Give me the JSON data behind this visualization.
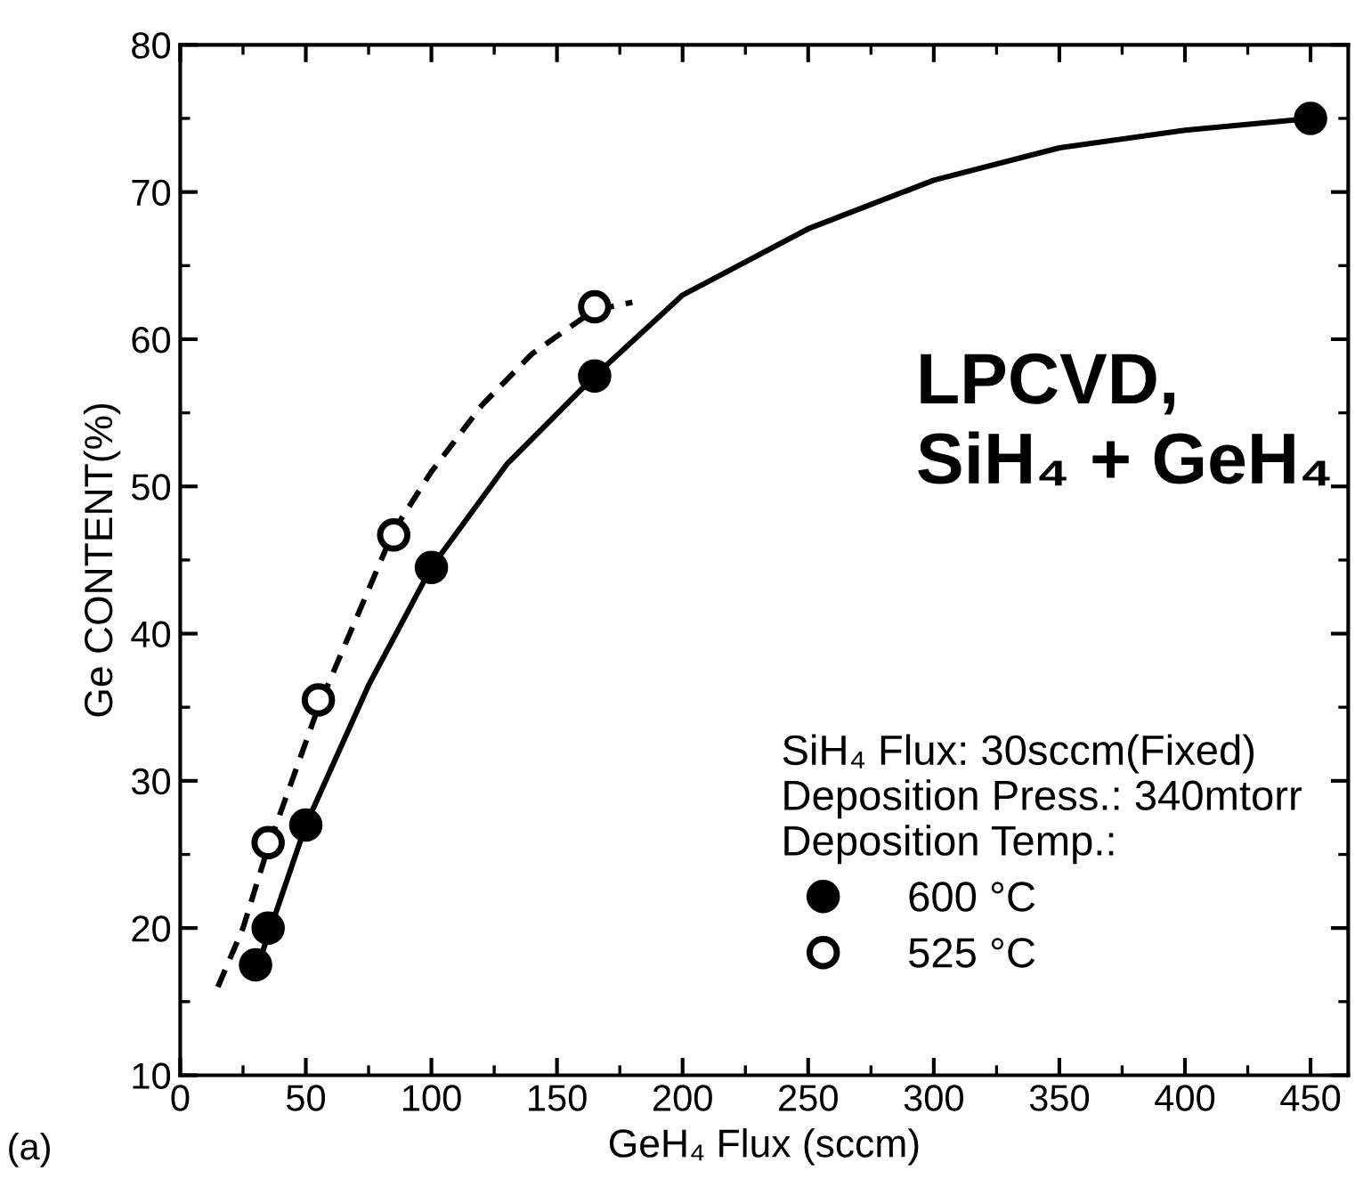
{
  "chart_data": {
    "type": "scatter",
    "xlabel": "GeH₄ Flux (sccm)",
    "ylabel": "Ge CONTENT(%)",
    "legend_title": "SiH₄ Flux: 30sccm(Fixed)\nDeposition Press.: 340mtorr\nDeposition Temp.:",
    "legend": "bottom right",
    "marker": "circle",
    "xlim": [
      0,
      465
    ],
    "ylim": [
      10,
      80
    ],
    "xticks": [
      0,
      50,
      100,
      150,
      200,
      250,
      300,
      350,
      400,
      450
    ],
    "yticks": [
      10,
      20,
      30,
      40,
      50,
      60,
      70,
      80
    ],
    "grid": false,
    "annotations": [
      "LPCVD,\nSiH₄ + GeH₄",
      "(a)"
    ],
    "series": [
      {
        "name": "600 °C",
        "color": "#000000",
        "x": [
          30,
          35,
          50,
          100,
          165,
          450
        ],
        "values": [
          17.5,
          20,
          27,
          44.5,
          57.5,
          75
        ]
      },
      {
        "name": "525 °C",
        "color": "#000000",
        "x": [
          35,
          55,
          85,
          165
        ],
        "values": [
          25.8,
          35.5,
          46.7,
          62.2
        ]
      },
      {
        "type": "line",
        "marker": "none",
        "color": "#000000",
        "line_style": "solid",
        "x": [
          30,
          50,
          75,
          100,
          130,
          165,
          200,
          250,
          300,
          350,
          400,
          450
        ],
        "values": [
          17,
          27,
          36.5,
          44.5,
          51.5,
          57.5,
          63,
          67.5,
          70.8,
          73,
          74.2,
          75
        ]
      },
      {
        "type": "line",
        "marker": "none",
        "color": "#000000",
        "line_style": "dashed",
        "x": [
          15,
          25,
          35,
          55,
          85,
          100,
          120,
          140,
          165,
          180
        ],
        "values": [
          16,
          20,
          25.5,
          35,
          47,
          51,
          55.5,
          59,
          62,
          62.5
        ]
      }
    ]
  }
}
